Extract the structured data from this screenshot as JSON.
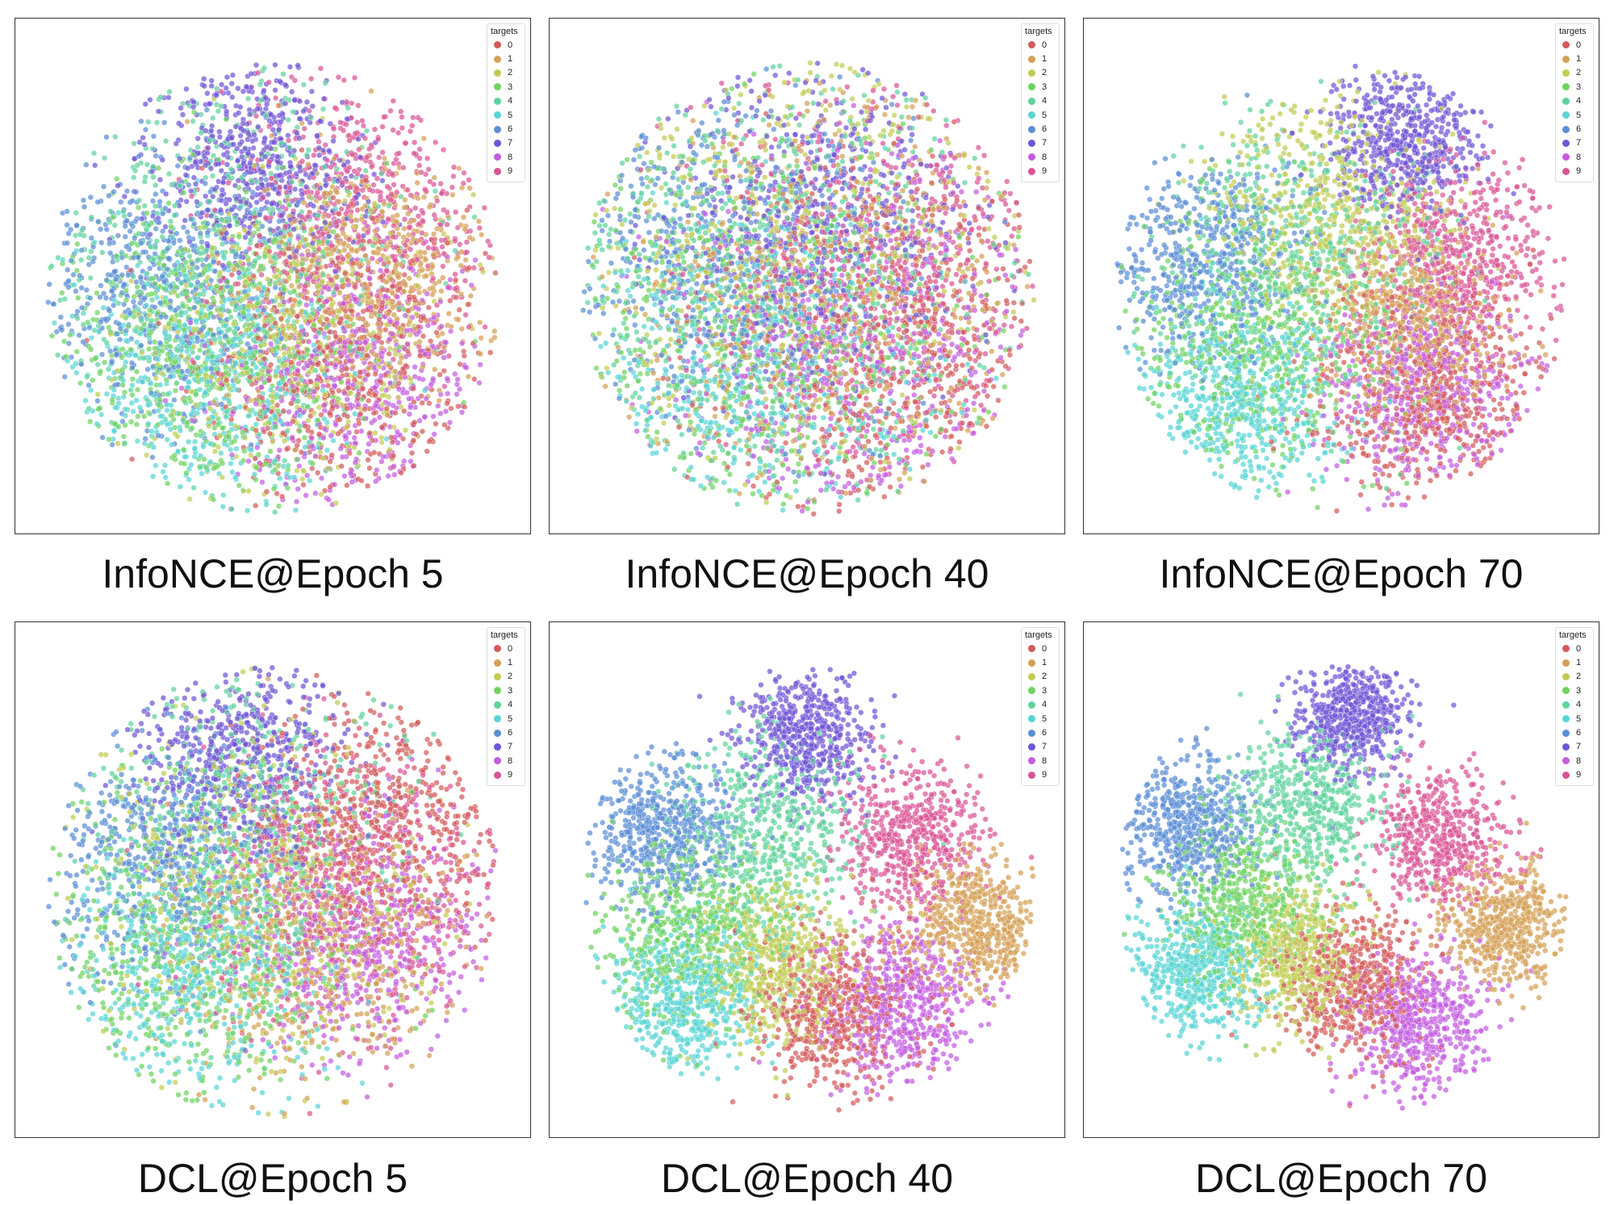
{
  "chart_data": [
    {
      "type": "scatter",
      "title": "InfoNCE@Epoch 5",
      "legend": {
        "title": "targets",
        "entries": [
          "0",
          "1",
          "2",
          "3",
          "4",
          "5",
          "6",
          "7",
          "8",
          "9"
        ],
        "placement": "top-right"
      },
      "separation": 0.35,
      "clusters": [
        {
          "target": "0",
          "center": [
            0.42,
            -0.48
          ],
          "spread": 0.2
        },
        {
          "target": "1",
          "center": [
            0.6,
            0.08
          ],
          "spread": 0.16
        },
        {
          "target": "2",
          "center": [
            0.12,
            -0.3
          ],
          "spread": 0.2
        },
        {
          "target": "3",
          "center": [
            -0.45,
            -0.35
          ],
          "spread": 0.22
        },
        {
          "target": "4",
          "center": [
            -0.35,
            0.25
          ],
          "spread": 0.26
        },
        {
          "target": "5",
          "center": [
            -0.4,
            -0.55
          ],
          "spread": 0.18
        },
        {
          "target": "6",
          "center": [
            -0.72,
            0.05
          ],
          "spread": 0.18
        },
        {
          "target": "7",
          "center": [
            -0.12,
            0.78
          ],
          "spread": 0.15
        },
        {
          "target": "8",
          "center": [
            0.48,
            -0.55
          ],
          "spread": 0.18
        },
        {
          "target": "9",
          "center": [
            0.58,
            0.52
          ],
          "spread": 0.18
        }
      ]
    },
    {
      "type": "scatter",
      "title": "InfoNCE@Epoch 40",
      "legend": {
        "title": "targets",
        "entries": [
          "0",
          "1",
          "2",
          "3",
          "4",
          "5",
          "6",
          "7",
          "8",
          "9"
        ],
        "placement": "top-right"
      },
      "separation": 0.18,
      "clusters": [
        {
          "target": "0",
          "center": [
            0.58,
            -0.4
          ],
          "spread": 0.24
        },
        {
          "target": "1",
          "center": [
            0.15,
            -0.1
          ],
          "spread": 0.26
        },
        {
          "target": "2",
          "center": [
            -0.2,
            0.35
          ],
          "spread": 0.28
        },
        {
          "target": "3",
          "center": [
            -0.3,
            -0.35
          ],
          "spread": 0.28
        },
        {
          "target": "4",
          "center": [
            -0.45,
            0.1
          ],
          "spread": 0.3
        },
        {
          "target": "5",
          "center": [
            -0.35,
            -0.6
          ],
          "spread": 0.22
        },
        {
          "target": "6",
          "center": [
            -0.65,
            0.2
          ],
          "spread": 0.24
        },
        {
          "target": "7",
          "center": [
            0.1,
            0.45
          ],
          "spread": 0.2
        },
        {
          "target": "8",
          "center": [
            0.35,
            -0.55
          ],
          "spread": 0.25
        },
        {
          "target": "9",
          "center": [
            0.5,
            0.15
          ],
          "spread": 0.24
        }
      ]
    },
    {
      "type": "scatter",
      "title": "InfoNCE@Epoch 70",
      "legend": {
        "title": "targets",
        "entries": [
          "0",
          "1",
          "2",
          "3",
          "4",
          "5",
          "6",
          "7",
          "8",
          "9"
        ],
        "placement": "top-right"
      },
      "separation": 0.55,
      "clusters": [
        {
          "target": "0",
          "center": [
            0.45,
            -0.6
          ],
          "spread": 0.18
        },
        {
          "target": "1",
          "center": [
            0.4,
            -0.15
          ],
          "spread": 0.14
        },
        {
          "target": "2",
          "center": [
            -0.05,
            0.4
          ],
          "spread": 0.18
        },
        {
          "target": "3",
          "center": [
            -0.45,
            -0.3
          ],
          "spread": 0.2
        },
        {
          "target": "4",
          "center": [
            -0.2,
            0.2
          ],
          "spread": 0.22
        },
        {
          "target": "5",
          "center": [
            -0.55,
            -0.6
          ],
          "spread": 0.16
        },
        {
          "target": "6",
          "center": [
            -0.75,
            0.15
          ],
          "spread": 0.16
        },
        {
          "target": "7",
          "center": [
            0.35,
            0.8
          ],
          "spread": 0.12
        },
        {
          "target": "8",
          "center": [
            0.45,
            -0.55
          ],
          "spread": 0.16
        },
        {
          "target": "9",
          "center": [
            0.62,
            0.18
          ],
          "spread": 0.15
        }
      ]
    },
    {
      "type": "scatter",
      "title": "DCL@Epoch 5",
      "legend": {
        "title": "targets",
        "entries": [
          "0",
          "1",
          "2",
          "3",
          "4",
          "5",
          "6",
          "7",
          "8",
          "9"
        ],
        "placement": "top-right"
      },
      "separation": 0.4,
      "clusters": [
        {
          "target": "0",
          "center": [
            0.68,
            0.4
          ],
          "spread": 0.18
        },
        {
          "target": "1",
          "center": [
            0.25,
            -0.3
          ],
          "spread": 0.2
        },
        {
          "target": "2",
          "center": [
            -0.1,
            0.0
          ],
          "spread": 0.24
        },
        {
          "target": "3",
          "center": [
            -0.45,
            -0.3
          ],
          "spread": 0.22
        },
        {
          "target": "4",
          "center": [
            -0.25,
            0.4
          ],
          "spread": 0.24
        },
        {
          "target": "5",
          "center": [
            -0.45,
            -0.45
          ],
          "spread": 0.18
        },
        {
          "target": "6",
          "center": [
            -0.7,
            0.2
          ],
          "spread": 0.18
        },
        {
          "target": "7",
          "center": [
            -0.2,
            0.82
          ],
          "spread": 0.14
        },
        {
          "target": "8",
          "center": [
            0.55,
            -0.25
          ],
          "spread": 0.18
        },
        {
          "target": "9",
          "center": [
            0.4,
            0.05
          ],
          "spread": 0.2
        }
      ]
    },
    {
      "type": "scatter",
      "title": "DCL@Epoch 40",
      "legend": {
        "title": "targets",
        "entries": [
          "0",
          "1",
          "2",
          "3",
          "4",
          "5",
          "6",
          "7",
          "8",
          "9"
        ],
        "placement": "top-right"
      },
      "separation": 0.8,
      "clusters": [
        {
          "target": "0",
          "center": [
            0.12,
            -0.55
          ],
          "spread": 0.15
        },
        {
          "target": "1",
          "center": [
            0.8,
            -0.15
          ],
          "spread": 0.12
        },
        {
          "target": "2",
          "center": [
            -0.15,
            -0.35
          ],
          "spread": 0.14
        },
        {
          "target": "3",
          "center": [
            -0.55,
            -0.2
          ],
          "spread": 0.16
        },
        {
          "target": "4",
          "center": [
            -0.2,
            0.3
          ],
          "spread": 0.18
        },
        {
          "target": "5",
          "center": [
            -0.6,
            -0.5
          ],
          "spread": 0.14
        },
        {
          "target": "6",
          "center": [
            -0.7,
            0.3
          ],
          "spread": 0.14
        },
        {
          "target": "7",
          "center": [
            0.0,
            0.75
          ],
          "spread": 0.12
        },
        {
          "target": "8",
          "center": [
            0.45,
            -0.55
          ],
          "spread": 0.14
        },
        {
          "target": "9",
          "center": [
            0.5,
            0.25
          ],
          "spread": 0.13
        }
      ]
    },
    {
      "type": "scatter",
      "title": "DCL@Epoch 70",
      "legend": {
        "title": "targets",
        "entries": [
          "0",
          "1",
          "2",
          "3",
          "4",
          "5",
          "6",
          "7",
          "8",
          "9"
        ],
        "placement": "top-right"
      },
      "separation": 0.9,
      "clusters": [
        {
          "target": "0",
          "center": [
            0.05,
            -0.4
          ],
          "spread": 0.14
        },
        {
          "target": "1",
          "center": [
            0.75,
            -0.15
          ],
          "spread": 0.12
        },
        {
          "target": "2",
          "center": [
            -0.2,
            -0.3
          ],
          "spread": 0.13
        },
        {
          "target": "3",
          "center": [
            -0.45,
            -0.05
          ],
          "spread": 0.15
        },
        {
          "target": "4",
          "center": [
            -0.15,
            0.4
          ],
          "spread": 0.16
        },
        {
          "target": "5",
          "center": [
            -0.65,
            -0.35
          ],
          "spread": 0.13
        },
        {
          "target": "6",
          "center": [
            -0.7,
            0.3
          ],
          "spread": 0.14
        },
        {
          "target": "7",
          "center": [
            0.05,
            0.8
          ],
          "spread": 0.11
        },
        {
          "target": "8",
          "center": [
            0.35,
            -0.6
          ],
          "spread": 0.14
        },
        {
          "target": "9",
          "center": [
            0.45,
            0.25
          ],
          "spread": 0.13
        }
      ]
    }
  ],
  "colors": {
    "0": "#d45a5a",
    "1": "#d4a055",
    "2": "#c2cc52",
    "3": "#6ed35e",
    "4": "#5ed39c",
    "5": "#58d4d4",
    "6": "#5a8ed6",
    "7": "#6f55d6",
    "8": "#c45ce0",
    "9": "#d95495"
  }
}
